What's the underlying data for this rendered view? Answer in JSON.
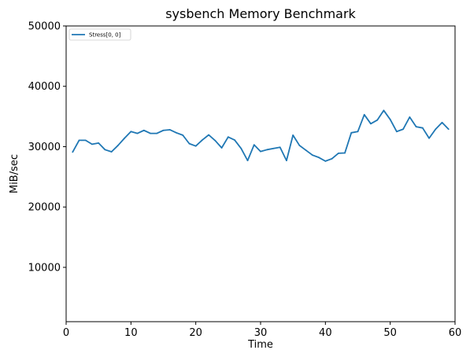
{
  "chart_data": {
    "type": "line",
    "title": "sysbench Memory Benchmark",
    "xlabel": "Time",
    "ylabel": "MiB/sec",
    "xlim": [
      0,
      60
    ],
    "ylim": [
      1000,
      50000
    ],
    "x_ticks": [
      0,
      10,
      20,
      30,
      40,
      50,
      60
    ],
    "y_ticks": [
      10000,
      20000,
      30000,
      40000,
      50000
    ],
    "grid": false,
    "legend_position": "top-left",
    "series": [
      {
        "name": "Stress[0, 0]",
        "color": "#1f77b4",
        "x": [
          1,
          2,
          3,
          4,
          5,
          6,
          7,
          8,
          9,
          10,
          11,
          12,
          13,
          14,
          15,
          16,
          17,
          18,
          19,
          20,
          21,
          22,
          23,
          24,
          25,
          26,
          27,
          28,
          29,
          30,
          31,
          32,
          33,
          34,
          35,
          36,
          37,
          38,
          39,
          40,
          41,
          42,
          43,
          44,
          45,
          46,
          47,
          48,
          49,
          50,
          51,
          52,
          53,
          54,
          55,
          56,
          57,
          58,
          59
        ],
        "y": [
          29100,
          31050,
          31050,
          30400,
          30600,
          29500,
          29150,
          30200,
          31400,
          32500,
          32200,
          32700,
          32200,
          32200,
          32700,
          32800,
          32300,
          31900,
          30500,
          30100,
          31100,
          31950,
          31000,
          29800,
          31600,
          31100,
          29700,
          27700,
          30300,
          29200,
          29500,
          29700,
          29900,
          27700,
          31900,
          30200,
          29400,
          28600,
          28200,
          27600,
          28000,
          28900,
          28950,
          32300,
          32500,
          35300,
          33800,
          34400,
          36000,
          34500,
          32500,
          32900,
          34900,
          33300,
          33100,
          31400,
          32900,
          34000,
          32900
        ]
      }
    ]
  }
}
